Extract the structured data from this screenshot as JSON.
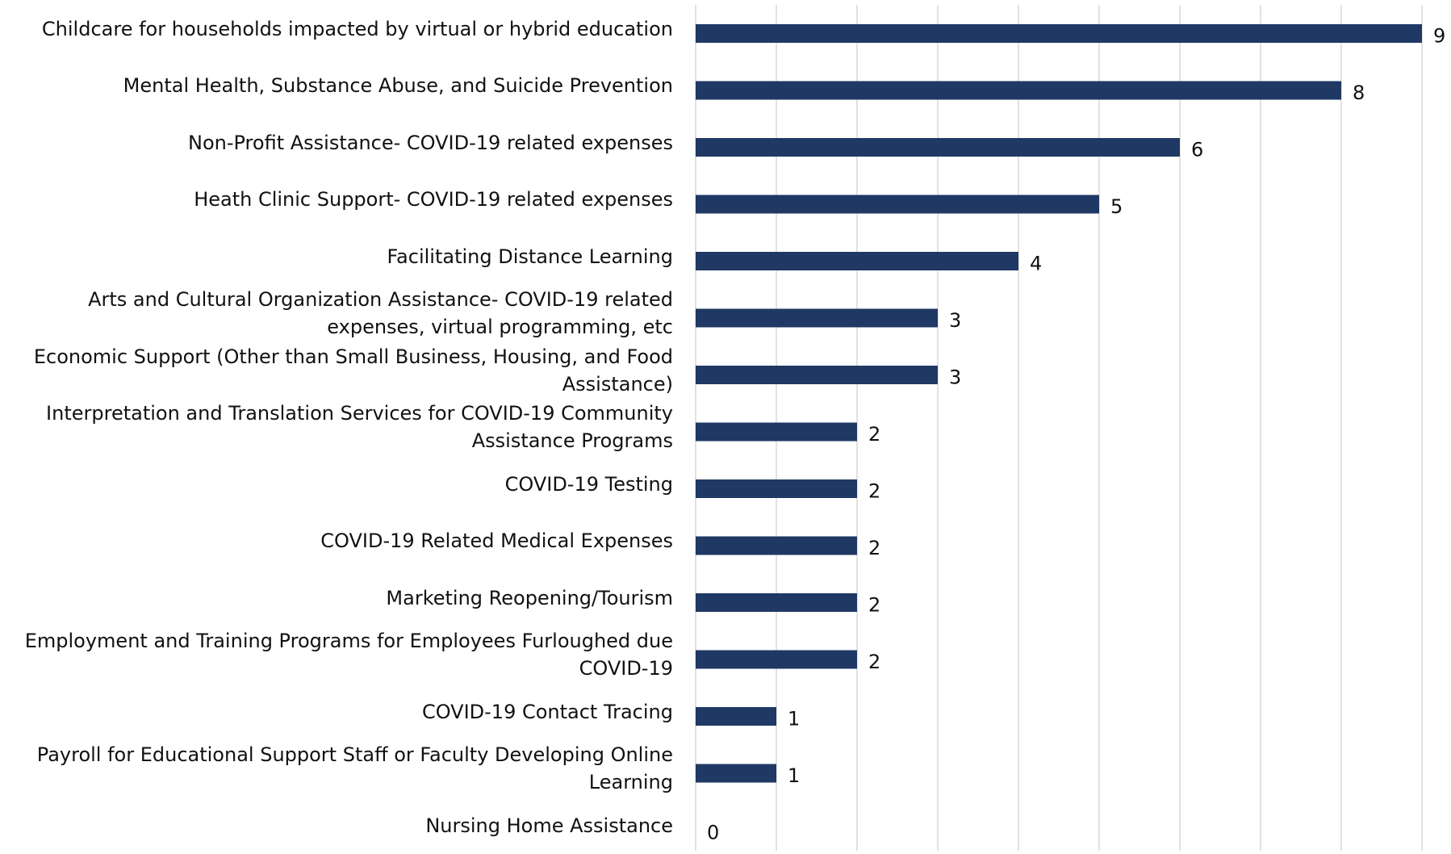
{
  "chart_data": {
    "type": "bar",
    "orientation": "horizontal",
    "categories": [
      "Childcare for households impacted by virtual or hybrid education",
      "Mental Health, Substance Abuse, and Suicide Prevention",
      "Non-Profit Assistance- COVID-19 related expenses",
      "Heath Clinic Support- COVID-19 related expenses",
      "Facilitating Distance Learning",
      "Arts and Cultural Organization Assistance- COVID-19 related expenses, virtual programming, etc",
      "Economic Support (Other than Small Business, Housing, and Food Assistance)",
      "Interpretation and Translation Services for COVID-19 Community Assistance Programs",
      "COVID-19 Testing",
      "COVID-19 Related Medical Expenses",
      "Marketing Reopening/Tourism",
      "Employment and Training Programs for Employees Furloughed due COVID-19",
      "COVID-19 Contact Tracing",
      "Payroll for Educational Support Staff or Faculty Developing Online Learning",
      "Nursing Home Assistance"
    ],
    "values": [
      9,
      8,
      6,
      5,
      4,
      3,
      3,
      2,
      2,
      2,
      2,
      2,
      1,
      1,
      0
    ],
    "color": "#1f3864",
    "xlim": [
      0,
      9
    ],
    "xticks": [
      0,
      1,
      2,
      3,
      4,
      5,
      6,
      7,
      8,
      9
    ],
    "grid": true
  }
}
